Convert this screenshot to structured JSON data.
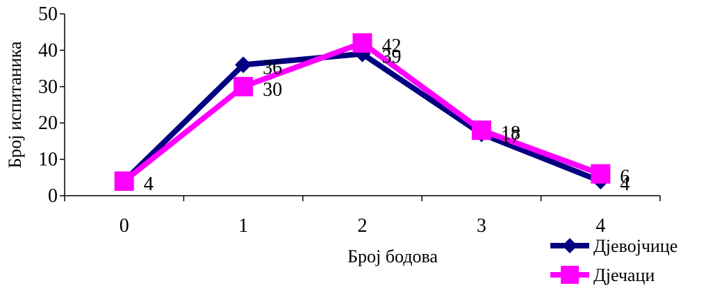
{
  "chart_data": {
    "type": "line",
    "title": "",
    "xlabel": "Број бодова",
    "ylabel": "Број испитаника",
    "categories": [
      "0",
      "1",
      "2",
      "3",
      "4"
    ],
    "ylim": [
      0,
      50
    ],
    "yticks": [
      "0",
      "10",
      "20",
      "30",
      "40",
      "50"
    ],
    "grid": false,
    "legend_position": "bottom-right",
    "series": [
      {
        "name": "Дјевојчице",
        "values": [
          4,
          36,
          39,
          17,
          4
        ],
        "color": "#000080",
        "marker": "diamond"
      },
      {
        "name": "Дјечаци",
        "values": [
          4,
          30,
          42,
          18,
          6
        ],
        "color": "#ff00ff",
        "marker": "square"
      }
    ]
  }
}
